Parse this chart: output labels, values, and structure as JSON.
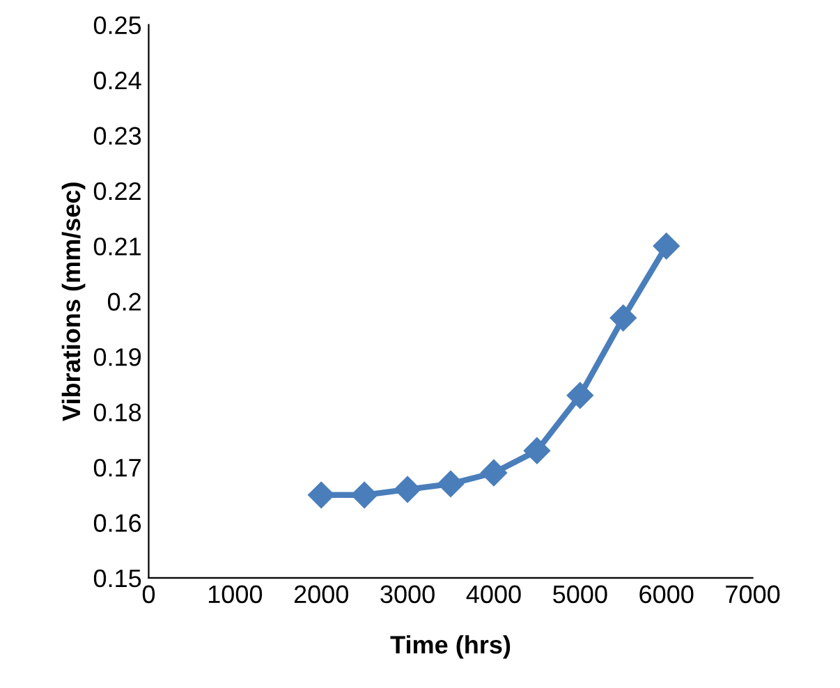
{
  "chart_data": {
    "type": "line",
    "xlabel": "Time (hrs)",
    "ylabel": "Vibrations (mm/sec)",
    "x": [
      2000,
      2500,
      3000,
      3500,
      4000,
      4500,
      5000,
      5500,
      6000
    ],
    "series": [
      {
        "color": "#4a7ebb",
        "values": [
          0.165,
          0.165,
          0.166,
          0.167,
          0.169,
          0.173,
          0.183,
          0.197,
          0.21
        ]
      }
    ],
    "xlim": [
      0,
      7000
    ],
    "xticks": [
      0,
      1000,
      2000,
      3000,
      4000,
      5000,
      6000,
      7000
    ],
    "ylim": [
      0.15,
      0.25
    ],
    "yticks": [
      0.15,
      0.16,
      0.17,
      0.18,
      0.19,
      0.2,
      0.21,
      0.22,
      0.23,
      0.24,
      0.25
    ],
    "marker": "diamond",
    "line_style": "solid"
  }
}
